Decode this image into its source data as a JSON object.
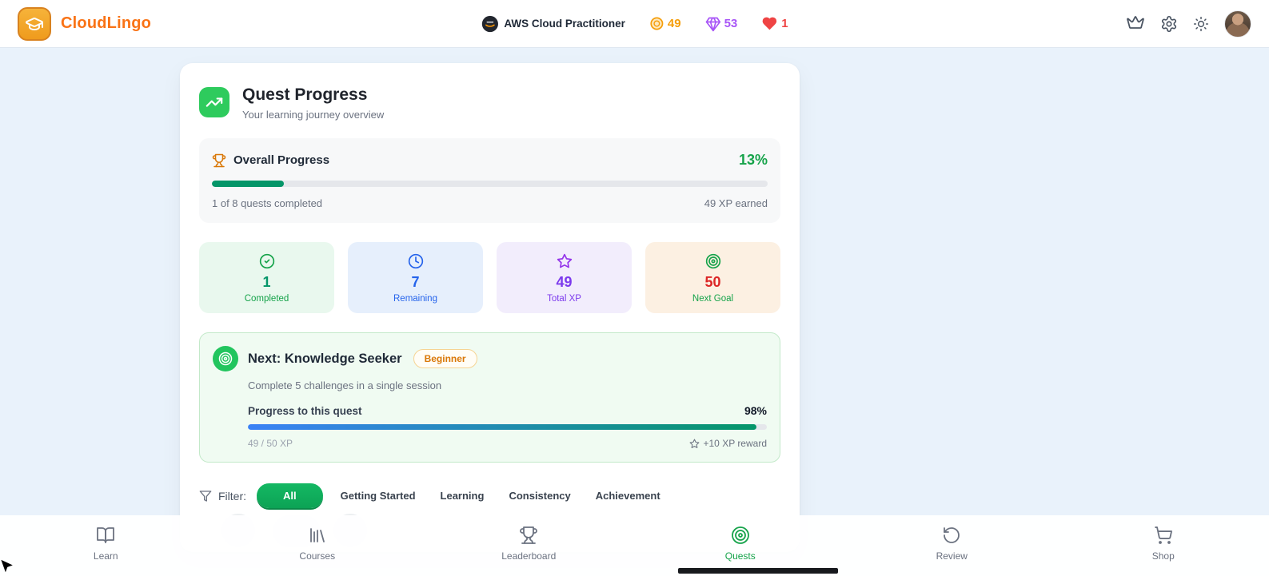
{
  "header": {
    "brand": "CloudLingo",
    "course": "AWS Cloud Practitioner",
    "coins": "49",
    "gems": "53",
    "hearts": "1"
  },
  "card": {
    "title": "Quest Progress",
    "subtitle": "Your learning journey overview",
    "overall": {
      "label": "Overall Progress",
      "percent": "13%",
      "percent_value": 13,
      "completed_text": "1 of 8 quests completed",
      "xp_text": "49 XP earned"
    },
    "stats": [
      {
        "icon": "check-circle-icon",
        "value": "1",
        "label": "Completed"
      },
      {
        "icon": "clock-icon",
        "value": "7",
        "label": "Remaining"
      },
      {
        "icon": "star-icon",
        "value": "49",
        "label": "Total XP"
      },
      {
        "icon": "target-icon",
        "value": "50",
        "label": "Next Goal"
      }
    ],
    "next_quest": {
      "title": "Next: Knowledge Seeker",
      "badge": "Beginner",
      "description": "Complete 5 challenges in a single session",
      "progress_label": "Progress to this quest",
      "percent": "98%",
      "percent_value": 98,
      "xp_text": "49 / 50 XP",
      "reward_text": "+10 XP reward"
    },
    "filter": {
      "label": "Filter:",
      "options": [
        "All",
        "Getting Started",
        "Learning",
        "Consistency",
        "Achievement"
      ],
      "active": "All"
    }
  },
  "bottom_nav": {
    "items": [
      {
        "icon": "book-open-icon",
        "label": "Learn",
        "active": false
      },
      {
        "icon": "library-icon",
        "label": "Courses",
        "active": false
      },
      {
        "icon": "trophy-icon",
        "label": "Leaderboard",
        "active": false
      },
      {
        "icon": "target-icon",
        "label": "Quests",
        "active": true
      },
      {
        "icon": "rotate-ccw-icon",
        "label": "Review",
        "active": false
      },
      {
        "icon": "shopping-cart-icon",
        "label": "Shop",
        "active": false
      }
    ]
  },
  "colors": {
    "brand_orange": "#f97316",
    "accent_green": "#16a34a",
    "progress_green": "#059669",
    "progress_gradient_start": "#3b82f6",
    "coin_orange": "#f59e0b",
    "gem_purple": "#a855f7",
    "heart_red": "#ef4444",
    "page_background": "#e9f2fb"
  }
}
